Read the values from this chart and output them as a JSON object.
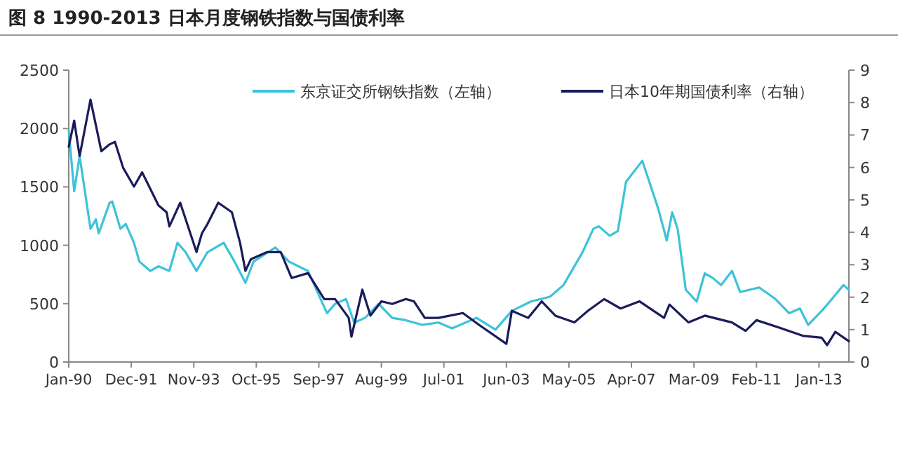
{
  "chart_data": {
    "type": "line",
    "title": "图 8 1990-2013 日本月度钢铁指数与国债利率",
    "xlim": [
      "1990-01",
      "2013-12"
    ],
    "xticks": [
      {
        "value": "1990-01",
        "label": "Jan-90"
      },
      {
        "value": "1991-12",
        "label": "Dec-91"
      },
      {
        "value": "1993-11",
        "label": "Nov-93"
      },
      {
        "value": "1995-10",
        "label": "Oct-95"
      },
      {
        "value": "1997-09",
        "label": "Sep-97"
      },
      {
        "value": "1999-08",
        "label": "Aug-99"
      },
      {
        "value": "2001-07",
        "label": "Jul-01"
      },
      {
        "value": "2003-06",
        "label": "Jun-03"
      },
      {
        "value": "2005-05",
        "label": "May-05"
      },
      {
        "value": "2007-04",
        "label": "Apr-07"
      },
      {
        "value": "2009-03",
        "label": "Mar-09"
      },
      {
        "value": "2011-02",
        "label": "Feb-11"
      },
      {
        "value": "2013-01",
        "label": "Jan-13"
      }
    ],
    "ylim": [
      0,
      2500
    ],
    "yticks": [
      0,
      500,
      1000,
      1500,
      2000,
      2500
    ],
    "y2lim": [
      0,
      9
    ],
    "y2ticks": [
      0,
      1,
      2,
      3,
      4,
      5,
      6,
      7,
      8,
      9
    ],
    "legend": "top",
    "grid": false,
    "marker": "none",
    "line_style": "solid",
    "series": [
      {
        "name": "东京证交所钢铁指数（左轴）",
        "color": "#3cc3d8",
        "x": [
          "1990-01",
          "1990-03",
          "1990-05",
          "1990-09",
          "1990-11",
          "1990-12",
          "1991-04",
          "1991-05",
          "1991-08",
          "1991-10",
          "1992-01",
          "1992-03",
          "1992-07",
          "1992-10",
          "1993-02",
          "1993-05",
          "1993-08",
          "1993-12",
          "1994-04",
          "1994-10",
          "1995-02",
          "1995-06",
          "1995-09",
          "1996-05",
          "1996-10",
          "1997-05",
          "1997-12",
          "1998-03",
          "1998-07",
          "1998-10",
          "1999-02",
          "1999-07",
          "1999-12",
          "2000-05",
          "2000-11",
          "2001-05",
          "2001-10",
          "2002-07",
          "2003-02",
          "2003-08",
          "2004-03",
          "2004-10",
          "2005-03",
          "2005-10",
          "2006-02",
          "2006-04",
          "2006-08",
          "2006-11",
          "2007-02",
          "2007-08",
          "2007-10",
          "2008-02",
          "2008-05",
          "2008-07",
          "2008-09",
          "2008-12",
          "2009-04",
          "2009-07",
          "2009-10",
          "2010-01",
          "2010-05",
          "2010-08",
          "2011-03",
          "2011-09",
          "2012-02",
          "2012-06",
          "2012-09",
          "2013-02",
          "2013-05",
          "2013-10",
          "2013-12"
        ],
        "values": [
          1985,
          1463,
          1765,
          1141,
          1222,
          1101,
          1362,
          1375,
          1141,
          1182,
          1021,
          860,
          780,
          820,
          780,
          1021,
          940,
          780,
          940,
          1021,
          860,
          679,
          860,
          981,
          860,
          780,
          418,
          498,
          539,
          338,
          378,
          498,
          378,
          358,
          318,
          338,
          289,
          378,
          277,
          438,
          518,
          559,
          659,
          940,
          1141,
          1162,
          1081,
          1121,
          1543,
          1724,
          1584,
          1302,
          1041,
          1282,
          1141,
          619,
          518,
          760,
          719,
          659,
          780,
          599,
          639,
          539,
          418,
          458,
          318,
          438,
          518,
          659,
          619
        ]
      },
      {
        "name": "日本10年期国债利率（右轴）",
        "color": "#1b1b5c",
        "axis": "y2",
        "x": [
          "1990-01",
          "1990-03",
          "1990-05",
          "1990-09",
          "1991-01",
          "1991-04",
          "1991-06",
          "1991-09",
          "1992-01",
          "1992-04",
          "1992-10",
          "1993-01",
          "1993-02",
          "1993-06",
          "1993-12",
          "1994-02",
          "1994-04",
          "1994-08",
          "1995-01",
          "1995-04",
          "1995-06",
          "1995-08",
          "1996-02",
          "1996-07",
          "1996-11",
          "1997-05",
          "1997-11",
          "1998-03",
          "1998-08",
          "1998-09",
          "1999-01",
          "1999-04",
          "1999-08",
          "1999-12",
          "2000-05",
          "2000-08",
          "2000-12",
          "2001-05",
          "2002-02",
          "2002-08",
          "2003-06",
          "2003-08",
          "2004-02",
          "2004-07",
          "2004-12",
          "2005-07",
          "2005-12",
          "2006-06",
          "2006-12",
          "2007-07",
          "2008-04",
          "2008-06",
          "2009-01",
          "2009-07",
          "2010-05",
          "2010-10",
          "2011-02",
          "2011-10",
          "2012-07",
          "2013-02",
          "2013-04",
          "2013-07",
          "2013-12"
        ],
        "values": [
          6.64,
          7.44,
          6.35,
          8.09,
          6.5,
          6.71,
          6.79,
          5.99,
          5.41,
          5.85,
          4.83,
          4.62,
          4.18,
          4.91,
          3.39,
          3.97,
          4.25,
          4.91,
          4.62,
          3.68,
          2.81,
          3.17,
          3.39,
          3.39,
          2.59,
          2.74,
          1.94,
          1.94,
          1.36,
          0.78,
          2.23,
          1.43,
          1.87,
          1.79,
          1.94,
          1.87,
          1.36,
          1.36,
          1.51,
          1.14,
          0.56,
          1.58,
          1.36,
          1.87,
          1.43,
          1.22,
          1.58,
          1.94,
          1.65,
          1.87,
          1.36,
          1.77,
          1.22,
          1.43,
          1.22,
          0.96,
          1.29,
          1.07,
          0.81,
          0.75,
          0.52,
          0.93,
          0.64
        ]
      }
    ]
  }
}
